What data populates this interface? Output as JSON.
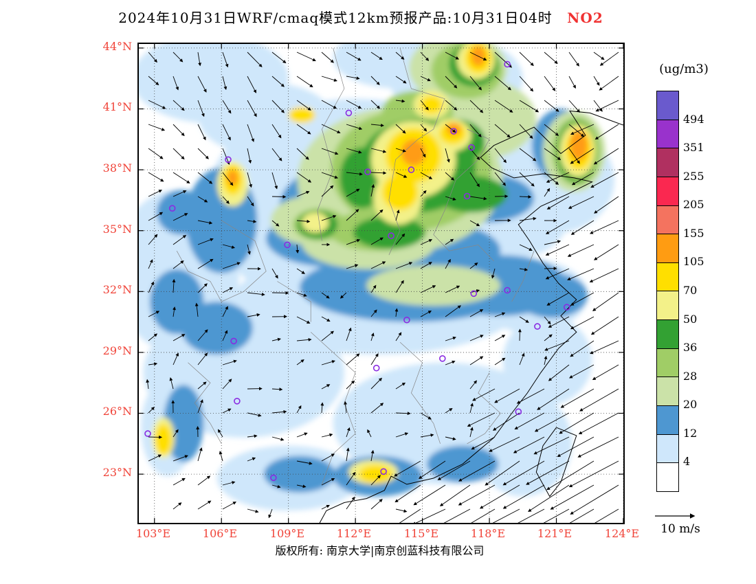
{
  "title": {
    "main": "2024年10月31日WRF/cmaq模式12km预报产品:10月31日04时",
    "pollutant": "NO2",
    "pollutant_color": "#f03232"
  },
  "axes": {
    "label_color": "#f04338",
    "lat_labels": [
      "44°N",
      "41°N",
      "38°N",
      "35°N",
      "32°N",
      "29°N",
      "26°N",
      "23°N"
    ],
    "lon_labels": [
      "103°E",
      "106°E",
      "109°E",
      "112°E",
      "115°E",
      "118°E",
      "121°E",
      "124°E"
    ]
  },
  "colorbar": {
    "unit": "(ug/m3)",
    "levels": [
      "494",
      "351",
      "255",
      "205",
      "155",
      "105",
      "70",
      "50",
      "36",
      "28",
      "20",
      "12",
      "4"
    ]
  },
  "wind_legend": {
    "label": "10 m/s"
  },
  "footer": {
    "copyright": "版权所有: 南京大学|南京创蓝科技有限公司"
  },
  "chart_data": {
    "type": "heatmap",
    "title": "2024年10月31日WRF/cmaq模式12km预报产品:10月31日04时 NO2",
    "pollutant": "NO2",
    "unit": "ug/m3",
    "model": "WRF/cmaq 12km",
    "lon_range": [
      102.3,
      124.0
    ],
    "lat_range": [
      20.6,
      44.2
    ],
    "grid_lons": [
      103,
      106,
      109,
      112,
      115,
      118,
      121,
      124
    ],
    "grid_lats": [
      23,
      26,
      29,
      32,
      35,
      38,
      41,
      44
    ],
    "levels": [
      4,
      12,
      20,
      28,
      36,
      50,
      70,
      105,
      155,
      205,
      255,
      351,
      494
    ],
    "level_colors": [
      "#ffffff",
      "#cfe7fb",
      "#4e97d1",
      "#cbe2a8",
      "#a0cd66",
      "#33a133",
      "#f3f189",
      "#ffdf00",
      "#ff9c12",
      "#f4735f",
      "#fa2850",
      "#b03060",
      "#9932cc",
      "#6a5acd"
    ],
    "wind_reference_ms": 10,
    "hotspot_format": "[lon, lat, rx_deg, ry_deg, min_level_ug_m3]",
    "hotspots": [
      [
        113,
        31.5,
        6.5,
        2.6,
        4
      ],
      [
        107,
        28,
        4.5,
        3.2,
        4
      ],
      [
        116,
        25.5,
        5,
        3,
        4
      ],
      [
        112,
        37,
        6.5,
        4.5,
        4
      ],
      [
        105.5,
        42.5,
        3.5,
        2.2,
        4
      ],
      [
        104,
        33,
        2.8,
        4,
        4
      ],
      [
        119.5,
        24.5,
        2.2,
        2.6,
        4
      ],
      [
        121,
        37.5,
        2.6,
        2.6,
        4
      ],
      [
        109,
        22.8,
        3.2,
        1.6,
        4
      ],
      [
        120.6,
        28.6,
        2,
        2.2,
        4
      ],
      [
        103.6,
        25.3,
        1.2,
        2.4,
        4
      ],
      [
        118.5,
        35.5,
        3,
        2,
        4
      ],
      [
        108,
        40.5,
        3,
        1.8,
        4
      ],
      [
        116.5,
        42.5,
        3,
        2,
        4
      ],
      [
        110.6,
        33.5,
        4,
        1.8,
        4
      ],
      [
        119.8,
        31.8,
        2.6,
        1.8,
        4
      ],
      [
        114,
        43.5,
        3,
        1.5,
        4
      ],
      [
        117.5,
        39,
        3,
        2,
        4
      ],
      [
        114.5,
        32.2,
        5,
        1.7,
        12
      ],
      [
        118.5,
        32.3,
        3,
        1.5,
        12
      ],
      [
        117.5,
        32.3,
        2.6,
        0.9,
        12
      ],
      [
        113.8,
        31.8,
        2,
        0.9,
        12
      ],
      [
        111,
        34.6,
        3,
        1.4,
        12
      ],
      [
        106,
        35.5,
        1.6,
        2.6,
        12
      ],
      [
        104.3,
        25.5,
        0.9,
        1.9,
        12
      ],
      [
        113,
        22.9,
        2,
        1,
        12
      ],
      [
        116.8,
        23.5,
        1.6,
        0.9,
        12
      ],
      [
        105.8,
        30.2,
        1.6,
        1.3,
        12
      ],
      [
        120.8,
        31.8,
        1.6,
        1.1,
        12
      ],
      [
        104.2,
        35.9,
        1.1,
        1.1,
        12
      ],
      [
        109.5,
        23,
        1.6,
        0.9,
        12
      ],
      [
        112,
        36.2,
        3.4,
        2.2,
        12
      ],
      [
        117.8,
        36.6,
        2.2,
        1.2,
        12
      ],
      [
        121.2,
        39.2,
        1.3,
        1.8,
        12
      ],
      [
        104,
        31.5,
        1.2,
        1.6,
        12
      ],
      [
        116,
        34,
        2.5,
        1.3,
        12
      ],
      [
        114,
        37.5,
        4.6,
        3.6,
        20
      ],
      [
        112.6,
        34.4,
        3,
        1.3,
        20
      ],
      [
        117.5,
        40.5,
        2.6,
        2,
        20
      ],
      [
        116.6,
        43,
        2.2,
        1.7,
        20
      ],
      [
        110,
        35.5,
        1.8,
        1.2,
        20
      ],
      [
        121.8,
        38.9,
        1.4,
        2,
        20
      ],
      [
        115.5,
        32.3,
        3,
        1,
        20
      ],
      [
        114.5,
        38,
        3.6,
        3,
        28
      ],
      [
        113,
        35,
        2.2,
        1,
        28
      ],
      [
        117,
        42.9,
        1.6,
        1.4,
        28
      ],
      [
        114.8,
        40.9,
        1.6,
        1,
        28
      ],
      [
        110.4,
        35.3,
        1.2,
        0.8,
        28
      ],
      [
        121.9,
        38.9,
        1.1,
        1.7,
        28
      ],
      [
        114.8,
        38.2,
        2.6,
        2.3,
        36
      ],
      [
        113.5,
        34.9,
        1.6,
        0.8,
        36
      ],
      [
        116.5,
        39.4,
        1.3,
        1.1,
        36
      ],
      [
        112.3,
        37.6,
        1,
        1.5,
        36
      ],
      [
        117.2,
        36.8,
        1.6,
        0.9,
        36
      ],
      [
        121.9,
        38.9,
        0.9,
        1.5,
        36
      ],
      [
        117.3,
        43.2,
        1.1,
        1.1,
        36
      ],
      [
        110.3,
        35.3,
        0.9,
        0.7,
        36
      ],
      [
        114.6,
        38.5,
        1.9,
        1.9,
        50
      ],
      [
        116.3,
        39.7,
        0.9,
        0.8,
        50
      ],
      [
        113.9,
        36.6,
        1.1,
        1.3,
        50
      ],
      [
        117.4,
        43.4,
        0.85,
        0.95,
        50
      ],
      [
        121.95,
        38.95,
        0.8,
        1.3,
        50
      ],
      [
        106.5,
        37.3,
        0.7,
        1.1,
        50
      ],
      [
        112.8,
        23.1,
        1.1,
        0.6,
        50
      ],
      [
        103.4,
        24.8,
        0.5,
        1,
        50
      ],
      [
        115.4,
        41.2,
        0.8,
        0.7,
        50
      ],
      [
        110.2,
        35.4,
        0.6,
        0.5,
        50
      ],
      [
        114.6,
        38.7,
        1.25,
        1.35,
        70
      ],
      [
        114,
        36.9,
        0.8,
        0.9,
        70
      ],
      [
        116.35,
        39.8,
        0.6,
        0.55,
        70
      ],
      [
        117.5,
        43.5,
        0.6,
        0.75,
        70
      ],
      [
        122,
        39,
        0.6,
        1,
        70
      ],
      [
        106.5,
        37.5,
        0.45,
        0.75,
        70
      ],
      [
        112.9,
        23,
        0.75,
        0.45,
        70
      ],
      [
        103.4,
        24.7,
        0.38,
        0.75,
        70
      ],
      [
        109.6,
        40.7,
        0.6,
        0.4,
        70
      ],
      [
        115.4,
        41.2,
        0.5,
        0.45,
        70
      ],
      [
        114.6,
        38.85,
        0.55,
        0.65,
        105
      ],
      [
        122,
        39.2,
        0.4,
        0.75,
        105
      ],
      [
        117.5,
        43.6,
        0.33,
        0.5,
        105
      ],
      [
        116.4,
        40,
        0.32,
        0.3,
        105
      ],
      [
        106.5,
        37.6,
        0.25,
        0.4,
        105
      ]
    ],
    "city_markers": [
      [
        103.8,
        36.1
      ],
      [
        106.3,
        38.5
      ],
      [
        111.7,
        40.8
      ],
      [
        116.4,
        39.9
      ],
      [
        117.2,
        39.1
      ],
      [
        114.5,
        38.0
      ],
      [
        112.55,
        37.9
      ],
      [
        117.0,
        36.7
      ],
      [
        113.6,
        34.75
      ],
      [
        108.95,
        34.3
      ],
      [
        114.3,
        30.6
      ],
      [
        117.3,
        31.9
      ],
      [
        118.8,
        32.06
      ],
      [
        121.47,
        31.23
      ],
      [
        120.15,
        30.28
      ],
      [
        115.9,
        28.7
      ],
      [
        112.94,
        28.23
      ],
      [
        106.7,
        26.6
      ],
      [
        106.55,
        29.56
      ],
      [
        108.33,
        22.82
      ],
      [
        113.26,
        23.13
      ],
      [
        119.3,
        26.08
      ],
      [
        118.8,
        43.2
      ],
      [
        102.7,
        25.0
      ]
    ]
  }
}
